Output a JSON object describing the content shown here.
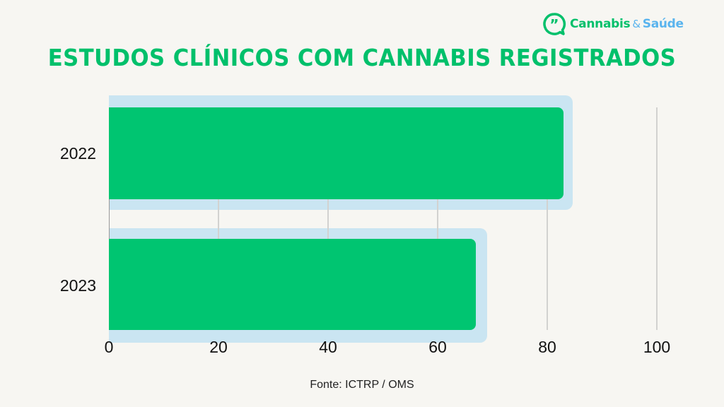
{
  "brand": {
    "name_part1": "Cannabis",
    "name_amp": "&",
    "name_part2": "Saúde",
    "icon": "speech-bubble-quote-icon",
    "colors": {
      "green": "#00c06b",
      "blue": "#5ab4ee"
    }
  },
  "title": "ESTUDOS CLÍNICOS COM CANNABIS REGISTRADOS",
  "source": "Fonte: ICTRP / OMS",
  "colors": {
    "bar": "#00c571",
    "backdrop": "#cae5f2",
    "background": "#f7f6f2",
    "title": "#00c06b"
  },
  "chart_data": {
    "type": "bar",
    "orientation": "horizontal",
    "title": "ESTUDOS CLÍNICOS COM CANNABIS REGISTRADOS",
    "categories": [
      "2022",
      "2023"
    ],
    "values": [
      83,
      67
    ],
    "xlabel": "",
    "ylabel": "",
    "xlim": [
      0,
      100
    ],
    "xticks": [
      "0",
      "20",
      "40",
      "60",
      "80",
      "100"
    ],
    "grid": "vertical",
    "legend": null,
    "annotation": "Fonte: ICTRP / OMS"
  }
}
